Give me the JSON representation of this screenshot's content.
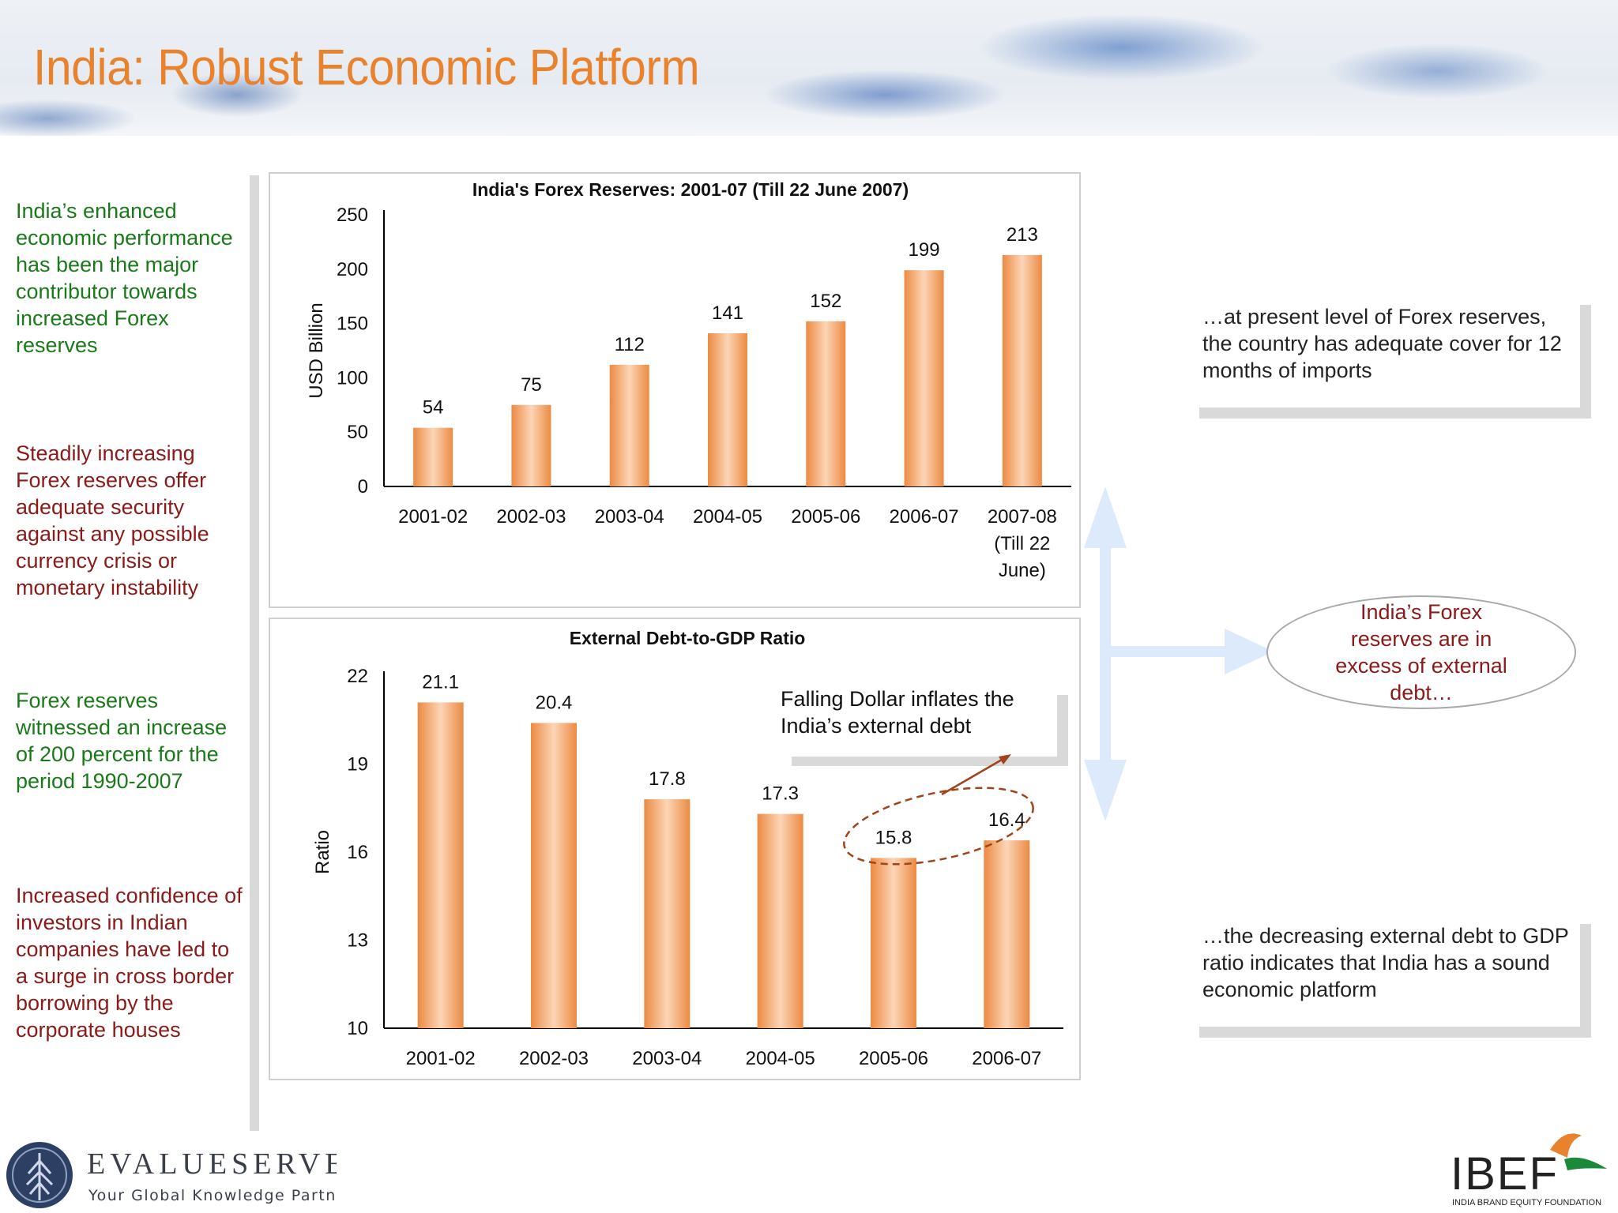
{
  "title": "India: Robust Economic Platform",
  "left_notes": [
    {
      "text": "India’s enhanced economic performance has been the major contributor towards increased Forex reserves",
      "color": "#1a7a1a"
    },
    {
      "text": "Steadily increasing Forex reserves offer adequate security against any possible currency crisis or monetary instability",
      "color": "#8b1a1a"
    },
    {
      "text": "Forex reserves witnessed an increase of 200 percent for the period 1990-2007",
      "color": "#1a7a1a"
    },
    {
      "text": "Increased confidence of investors in Indian companies have led to a surge in cross border borrowing by the corporate houses",
      "color": "#8b1a1a"
    }
  ],
  "right_notes": {
    "top": "…at present level of Forex reserves, the country has adequate cover for 12 months of imports",
    "bottom": "…the decreasing external debt to GDP ratio indicates that India has a sound economic platform",
    "oval": "India’s Forex reserves are in excess of external debt…"
  },
  "callout": "Falling Dollar inflates the India’s external debt",
  "brand": {
    "left_name": "EVALUESERVE",
    "left_tagline": "Your Global Knowledge Partner",
    "right_name": "IBEF",
    "right_tagline": "INDIA BRAND EQUITY FOUNDATION"
  },
  "colors": {
    "accent": "#e8822d",
    "bar_dark": "#ec8a42",
    "bar_light": "#fcd5b6",
    "green_text": "#1a7a1a",
    "maroon_text": "#8b1a1a",
    "arrow": "#dceafc"
  },
  "chart_data": [
    {
      "type": "bar",
      "title": "India's Forex Reserves: 2001-07 (Till 22 June 2007)",
      "ylabel": "USD Billion",
      "xlabel": "",
      "ylim": [
        0,
        250
      ],
      "yticks": [
        0,
        50,
        100,
        150,
        200,
        250
      ],
      "categories": [
        "2001-02",
        "2002-03",
        "2003-04",
        "2004-05",
        "2005-06",
        "2006-07",
        "2007-08 (Till 22 June)"
      ],
      "values": [
        54,
        75,
        112,
        141,
        152,
        199,
        213
      ],
      "grid": false
    },
    {
      "type": "bar",
      "title": "External Debt-to-GDP Ratio",
      "ylabel": "Ratio",
      "xlabel": "",
      "ylim": [
        10,
        22
      ],
      "yticks": [
        10,
        13,
        16,
        19,
        22
      ],
      "categories": [
        "2001-02",
        "2002-03",
        "2003-04",
        "2004-05",
        "2005-06",
        "2006-07"
      ],
      "values": [
        21.1,
        20.4,
        17.8,
        17.3,
        15.8,
        16.4
      ],
      "grid": false
    }
  ]
}
